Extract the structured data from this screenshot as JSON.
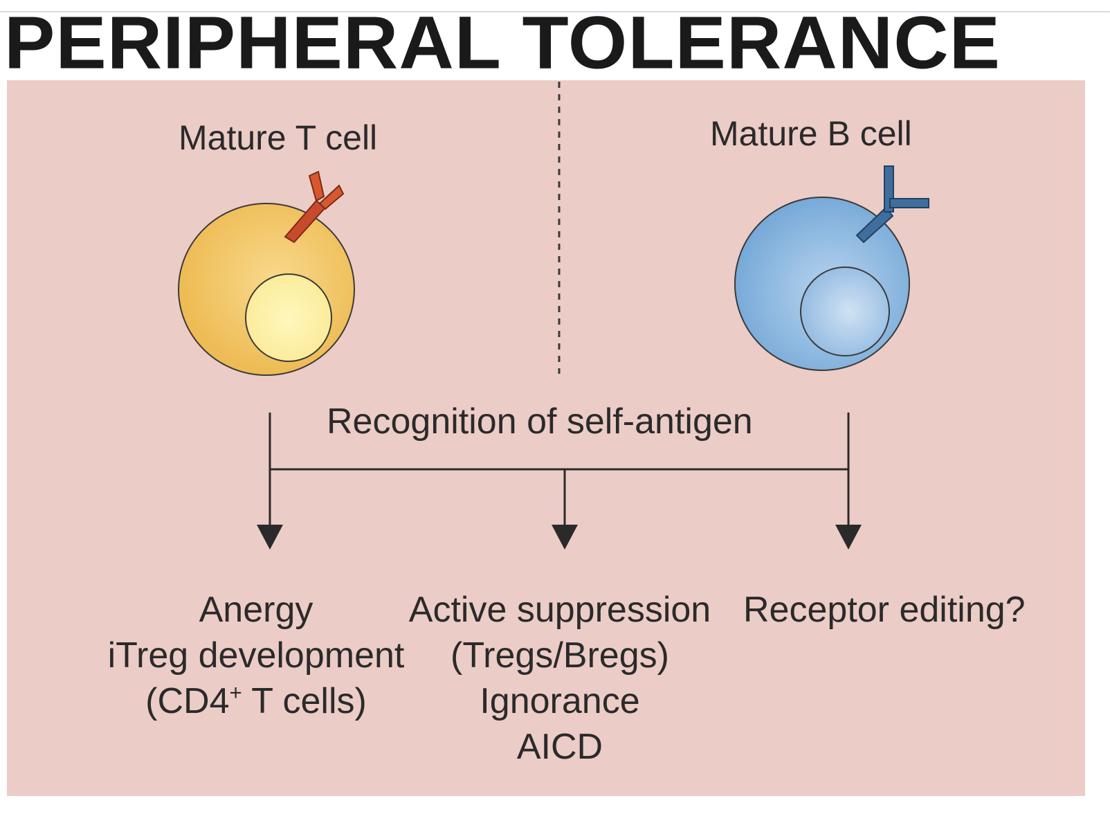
{
  "title": "PERIPHERAL TOLERANCE",
  "cells": {
    "t_cell": {
      "label": "Mature T cell"
    },
    "b_cell": {
      "label": "Mature B cell"
    }
  },
  "trigger": "Recognition of self-antigen",
  "outcomes": {
    "left": {
      "line1": "Anergy",
      "line2": "iTreg development",
      "line3_pre": "(CD4",
      "line3_sup": "+",
      "line3_post": " T cells)"
    },
    "middle": {
      "line1": "Active suppression",
      "line2": "(Tregs/Bregs)",
      "line3": "Ignorance",
      "line4": "AICD"
    },
    "right": {
      "line1": "Receptor editing?"
    }
  },
  "colors": {
    "panel": "#ecccc7",
    "t_cell": "#f2c15a",
    "t_nucleus": "#fdf1a8",
    "t_receptor": "#d8502a",
    "b_cell": "#7fb1dc",
    "b_nucleus": "#a9c9e8",
    "b_receptor": "#33628f",
    "text": "#2a2a2a"
  }
}
